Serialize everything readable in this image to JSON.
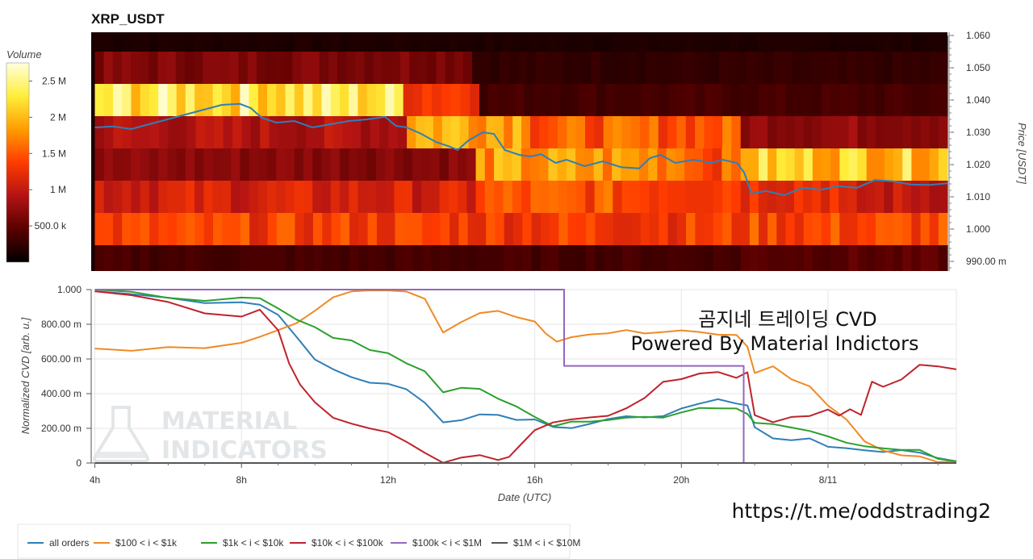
{
  "top_title": "XRP_USDT",
  "colorbar": {
    "title": "Volume",
    "ticks": [
      {
        "label": "2.5 M",
        "value": 2500000
      },
      {
        "label": "2 M",
        "value": 2000000
      },
      {
        "label": "1.5 M",
        "value": 1500000
      },
      {
        "label": "1 M",
        "value": 1000000
      },
      {
        "label": "500.0 k",
        "value": 500000
      }
    ],
    "range": [
      0,
      2750000
    ],
    "colors": [
      "#000000",
      "#5a0000",
      "#b31313",
      "#ff3b00",
      "#ff9c00",
      "#ffee3a",
      "#ffffdc"
    ]
  },
  "overlay_text": {
    "line1": "곰지네 트레이딩 CVD",
    "line2": "Powered By Material Indictors"
  },
  "url_text": "https://t.me/oddstrading2",
  "watermark": {
    "line1": "MATERIAL",
    "line2": "INDICATORS"
  },
  "chart_data": [
    {
      "type": "heatmap",
      "title": "XRP_USDT",
      "ylabel": "Price [USDT]",
      "ylim": [
        0.987,
        1.061
      ],
      "y_ticks": [
        {
          "label": "1.060",
          "value": 1.06
        },
        {
          "label": "1.050",
          "value": 1.05
        },
        {
          "label": "1.040",
          "value": 1.04
        },
        {
          "label": "1.030",
          "value": 1.03
        },
        {
          "label": "1.020",
          "value": 1.02
        },
        {
          "label": "1.010",
          "value": 1.01
        },
        {
          "label": "1.000",
          "value": 1.0
        },
        {
          "label": "990.00 m",
          "value": 0.99
        }
      ],
      "x_range_hours": [
        3.9,
        27.5
      ],
      "price_bands": [
        {
          "price": 1.055,
          "segments": [
            {
              "from": 4,
              "to": 27.5,
              "volume": 150000
            }
          ]
        },
        {
          "price": 1.05,
          "segments": [
            {
              "from": 4,
              "to": 14.4,
              "volume": 650000
            },
            {
              "from": 14.4,
              "to": 27.5,
              "volume": 250000
            }
          ]
        },
        {
          "price": 1.04,
          "segments": [
            {
              "from": 4,
              "to": 12.5,
              "volume": 2300000
            },
            {
              "from": 12.5,
              "to": 14.6,
              "volume": 1400000
            },
            {
              "from": 14.6,
              "to": 27.5,
              "volume": 350000
            }
          ]
        },
        {
          "price": 1.03,
          "segments": [
            {
              "from": 4,
              "to": 12.6,
              "volume": 900000
            },
            {
              "from": 12.6,
              "to": 16.0,
              "volume": 2000000
            },
            {
              "from": 16.0,
              "to": 21.8,
              "volume": 1500000
            },
            {
              "from": 21.8,
              "to": 27.5,
              "volume": 750000
            }
          ]
        },
        {
          "price": 1.02,
          "segments": [
            {
              "from": 4,
              "to": 14.5,
              "volume": 700000
            },
            {
              "from": 14.5,
              "to": 20.5,
              "volume": 1800000
            },
            {
              "from": 20.5,
              "to": 21.8,
              "volume": 1500000
            },
            {
              "from": 21.8,
              "to": 27.5,
              "volume": 2100000
            }
          ]
        },
        {
          "price": 1.01,
          "segments": [
            {
              "from": 4,
              "to": 14.5,
              "volume": 1100000
            },
            {
              "from": 14.5,
              "to": 21.8,
              "volume": 1450000
            },
            {
              "from": 21.8,
              "to": 24.5,
              "volume": 1300000
            },
            {
              "from": 24.5,
              "to": 27.5,
              "volume": 1000000
            }
          ]
        },
        {
          "price": 1.0,
          "segments": [
            {
              "from": 4,
              "to": 21.8,
              "volume": 1350000
            },
            {
              "from": 21.8,
              "to": 27.5,
              "volume": 1400000
            }
          ]
        },
        {
          "price": 0.99,
          "segments": [
            {
              "from": 4,
              "to": 21.8,
              "volume": 350000
            },
            {
              "from": 21.8,
              "to": 27.5,
              "volume": 450000
            }
          ]
        }
      ],
      "price_line": {
        "color": "#2f7fb8",
        "x_hours": [
          4,
          4.5,
          5,
          5.5,
          6,
          6.5,
          7,
          7.5,
          8,
          8.3,
          8.6,
          9,
          9.5,
          10,
          10.5,
          11,
          11.5,
          12,
          12.3,
          12.6,
          13,
          13.4,
          13.8,
          14,
          14.3,
          14.7,
          15,
          15.3,
          15.7,
          16,
          16.3,
          16.7,
          17,
          17.5,
          18,
          18.5,
          19,
          19.3,
          19.6,
          20,
          20.5,
          21,
          21.3,
          21.7,
          21.9,
          22.1,
          22.5,
          23,
          23.5,
          24,
          24.5,
          25,
          25.5,
          26,
          26.5,
          27,
          27.5
        ],
        "y": [
          1.0315,
          1.0318,
          1.031,
          1.0325,
          1.034,
          1.0355,
          1.037,
          1.0385,
          1.0388,
          1.0375,
          1.0345,
          1.033,
          1.0335,
          1.0315,
          1.0325,
          1.0335,
          1.034,
          1.0348,
          1.032,
          1.0315,
          1.0295,
          1.027,
          1.0255,
          1.0245,
          1.0275,
          1.03,
          1.0295,
          1.0245,
          1.023,
          1.0225,
          1.0232,
          1.0205,
          1.0215,
          1.0195,
          1.021,
          1.0192,
          1.0188,
          1.022,
          1.023,
          1.0205,
          1.0215,
          1.0205,
          1.0215,
          1.0205,
          1.0175,
          1.011,
          1.0118,
          1.0105,
          1.0128,
          1.0122,
          1.0133,
          1.0128,
          1.0152,
          1.0148,
          1.0138,
          1.0137,
          1.0142
        ]
      }
    },
    {
      "type": "line",
      "xlabel": "Date (UTC)",
      "ylabel": "Normalized CVD [arb. u.]",
      "ylim": [
        0,
        1.0
      ],
      "x_range_hours": [
        3.9,
        27.5
      ],
      "x_ticks": [
        {
          "label": "4h",
          "value": 4
        },
        {
          "label": "8h",
          "value": 8
        },
        {
          "label": "12h",
          "value": 12
        },
        {
          "label": "16h",
          "value": 16
        },
        {
          "label": "20h",
          "value": 20
        },
        {
          "label": "8/11",
          "value": 24
        }
      ],
      "y_ticks": [
        {
          "label": "1.000",
          "value": 1.0
        },
        {
          "label": "800.00 m",
          "value": 0.8
        },
        {
          "label": "600.00 m",
          "value": 0.6
        },
        {
          "label": "400.00 m",
          "value": 0.4
        },
        {
          "label": "200.00 m",
          "value": 0.2
        },
        {
          "label": "0",
          "value": 0
        }
      ],
      "legend_position": "bottom-left",
      "series": [
        {
          "name": "all orders",
          "color": "#2f7fb8",
          "x": [
            4,
            5,
            6,
            7,
            8,
            8.5,
            9,
            9.5,
            10,
            10.5,
            11,
            11.5,
            12,
            12.5,
            13,
            13.5,
            14,
            14.5,
            15,
            15.5,
            16,
            16.5,
            17,
            17.5,
            18,
            18.5,
            19,
            19.5,
            20,
            20.5,
            21,
            21.5,
            21.8,
            22,
            22.5,
            23,
            23.5,
            24,
            24.5,
            25,
            25.5,
            26,
            26.5,
            27,
            27.5
          ],
          "y": [
            0.99,
            0.97,
            0.95,
            0.93,
            0.92,
            0.91,
            0.85,
            0.72,
            0.6,
            0.54,
            0.5,
            0.47,
            0.45,
            0.43,
            0.35,
            0.24,
            0.25,
            0.28,
            0.27,
            0.24,
            0.26,
            0.21,
            0.2,
            0.23,
            0.26,
            0.27,
            0.26,
            0.27,
            0.32,
            0.34,
            0.36,
            0.35,
            0.33,
            0.2,
            0.14,
            0.14,
            0.14,
            0.1,
            0.09,
            0.07,
            0.07,
            0.07,
            0.06,
            0.02,
            0.01
          ]
        },
        {
          "name": "$100 < i < $1k",
          "color": "#f08a24",
          "x": [
            4,
            5,
            6,
            7,
            8,
            8.5,
            9,
            9.5,
            10,
            10.5,
            11,
            11.5,
            12,
            12.5,
            13,
            13.5,
            14,
            14.5,
            15,
            15.5,
            16,
            16.3,
            16.6,
            17,
            17.5,
            18,
            18.5,
            19,
            19.5,
            20,
            20.5,
            21,
            21.5,
            21.8,
            22,
            22.5,
            23,
            23.5,
            24,
            24.5,
            25,
            25.5,
            26,
            26.5,
            27,
            27.5
          ],
          "y": [
            0.66,
            0.64,
            0.67,
            0.67,
            0.7,
            0.72,
            0.76,
            0.8,
            0.88,
            0.95,
            0.99,
            1.0,
            1.0,
            0.99,
            0.94,
            0.75,
            0.82,
            0.86,
            0.88,
            0.85,
            0.82,
            0.74,
            0.7,
            0.72,
            0.74,
            0.74,
            0.76,
            0.74,
            0.75,
            0.76,
            0.76,
            0.74,
            0.73,
            0.68,
            0.52,
            0.55,
            0.48,
            0.45,
            0.34,
            0.25,
            0.12,
            0.07,
            0.05,
            0.03,
            0.01,
            0.01
          ]
        },
        {
          "name": "$1k < i < $10k",
          "color": "#2ca02c",
          "x": [
            4,
            5,
            6,
            7,
            8,
            8.5,
            9,
            9.5,
            10,
            10.5,
            11,
            11.5,
            12,
            12.5,
            13,
            13.5,
            14,
            14.5,
            15,
            15.5,
            16,
            16.5,
            17,
            17.5,
            18,
            18.5,
            19,
            19.5,
            20,
            20.5,
            21,
            21.5,
            21.8,
            22,
            22.5,
            23,
            23.5,
            24,
            24.5,
            25,
            25.5,
            26,
            26.5,
            27,
            27.5
          ],
          "y": [
            1.0,
            0.98,
            0.96,
            0.94,
            0.96,
            0.95,
            0.9,
            0.83,
            0.78,
            0.73,
            0.7,
            0.66,
            0.63,
            0.58,
            0.52,
            0.41,
            0.43,
            0.42,
            0.37,
            0.32,
            0.27,
            0.21,
            0.23,
            0.24,
            0.24,
            0.26,
            0.26,
            0.27,
            0.3,
            0.31,
            0.32,
            0.31,
            0.29,
            0.24,
            0.23,
            0.2,
            0.18,
            0.15,
            0.12,
            0.09,
            0.08,
            0.08,
            0.07,
            0.02,
            0.01
          ]
        },
        {
          "name": "$10k < i < $100k",
          "color": "#c0222a",
          "x": [
            4,
            5,
            6,
            7,
            8,
            8.5,
            9,
            9.3,
            9.6,
            10,
            10.5,
            11,
            11.5,
            12,
            12.5,
            13,
            13.5,
            14,
            14.5,
            15,
            15.3,
            15.6,
            16,
            16.5,
            17,
            17.5,
            18,
            18.5,
            19,
            19.5,
            20,
            20.5,
            21,
            21.5,
            21.8,
            22,
            22.5,
            23,
            23.5,
            24,
            24.3,
            24.6,
            24.9,
            25.2,
            25.5,
            26,
            26.5,
            27,
            27.5
          ],
          "y": [
            0.99,
            0.96,
            0.92,
            0.87,
            0.84,
            0.88,
            0.77,
            0.58,
            0.45,
            0.35,
            0.26,
            0.22,
            0.2,
            0.18,
            0.13,
            0.06,
            0.01,
            0.03,
            0.04,
            0.01,
            0.03,
            0.11,
            0.19,
            0.24,
            0.25,
            0.27,
            0.28,
            0.31,
            0.38,
            0.46,
            0.49,
            0.52,
            0.53,
            0.5,
            0.52,
            0.28,
            0.23,
            0.26,
            0.27,
            0.3,
            0.28,
            0.31,
            0.27,
            0.46,
            0.44,
            0.49,
            0.56,
            0.55,
            0.54
          ]
        },
        {
          "name": "$100k < i < $1M",
          "color": "#9467bd",
          "x": [
            4,
            16.8,
            16.8,
            21.7,
            21.7,
            27.5
          ],
          "y": [
            1.0,
            1.0,
            0.56,
            0.56,
            0.0,
            0.0
          ]
        },
        {
          "name": "$1M < i < $10M",
          "color": "#555555",
          "x": [
            4,
            27.5
          ],
          "y": [
            0.0,
            0.0
          ]
        }
      ]
    }
  ]
}
